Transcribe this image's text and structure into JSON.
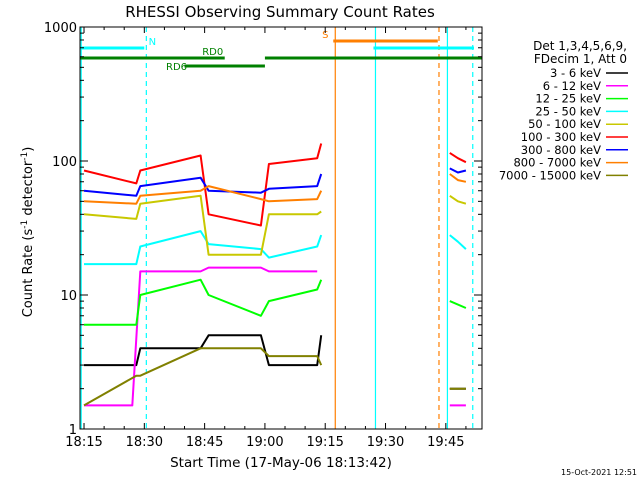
{
  "chart_data": {
    "type": "line",
    "title": "RHESSI Observing Summary Count Rates",
    "xlabel": "Start Time (17-May-06 18:13:42)",
    "ylabel_main": "Count Rate (s",
    "ylabel_sup1": "-1",
    "ylabel_mid": " detector",
    "ylabel_sup2": "-1",
    "ylabel_end": ")",
    "yscale": "log",
    "ylim": [
      1,
      1000
    ],
    "xlim_minutes": [
      1094,
      1194
    ],
    "xticks": [
      {
        "t": 1095,
        "label": "18:15"
      },
      {
        "t": 1110,
        "label": "18:30"
      },
      {
        "t": 1125,
        "label": "18:45"
      },
      {
        "t": 1140,
        "label": "19:00"
      },
      {
        "t": 1155,
        "label": "19:15"
      },
      {
        "t": 1170,
        "label": "19:30"
      },
      {
        "t": 1185,
        "label": "19:45"
      }
    ],
    "yticks": [
      {
        "v": 1,
        "label": "1"
      },
      {
        "v": 10,
        "label": "10"
      },
      {
        "v": 100,
        "label": "100"
      },
      {
        "v": 1000,
        "label": "1000"
      }
    ],
    "legend_header": [
      "Det 1,3,4,5,6,9,",
      "FDecim 1, Att 0"
    ],
    "series": [
      {
        "name": "3 - 6 keV",
        "color": "#000000",
        "segments": [
          {
            "x": [
              1095,
              1108,
              1109,
              1124,
              1126,
              1139,
              1141,
              1153,
              1154
            ],
            "y": [
              3,
              3,
              4,
              4,
              5,
              5,
              3,
              3,
              5
            ]
          },
          {
            "x": [
              1186,
              1188,
              1190
            ],
            "y": [
              2,
              2,
              2
            ]
          }
        ]
      },
      {
        "name": "6 - 12 keV",
        "color": "#ff00ff",
        "segments": [
          {
            "x": [
              1095,
              1107,
              1109,
              1124,
              1126,
              1139,
              1141,
              1153
            ],
            "y": [
              1.5,
              1.5,
              15,
              15,
              16,
              16,
              15,
              15
            ]
          },
          {
            "x": [
              1186,
              1188,
              1190
            ],
            "y": [
              1.5,
              1.5,
              1.5
            ]
          }
        ]
      },
      {
        "name": "12 - 25 keV",
        "color": "#00ff00",
        "segments": [
          {
            "x": [
              1095,
              1108,
              1109,
              1124,
              1126,
              1139,
              1141,
              1153,
              1154
            ],
            "y": [
              6,
              6,
              10,
              13,
              10,
              7,
              9,
              11,
              13
            ]
          },
          {
            "x": [
              1186,
              1190
            ],
            "y": [
              9,
              8
            ]
          }
        ]
      },
      {
        "name": "25 - 50 keV",
        "color": "#00ffff",
        "segments": [
          {
            "x": [
              1095,
              1108,
              1109,
              1124,
              1126,
              1139,
              1141,
              1153,
              1154
            ],
            "y": [
              17,
              17,
              23,
              30,
              24,
              22,
              19,
              23,
              28
            ]
          },
          {
            "x": [
              1186,
              1188,
              1190
            ],
            "y": [
              28,
              25,
              22
            ]
          }
        ]
      },
      {
        "name": "50 - 100 keV",
        "color": "#c8c800",
        "segments": [
          {
            "x": [
              1095,
              1108,
              1109,
              1124,
              1126,
              1139,
              1141,
              1153,
              1154
            ],
            "y": [
              40,
              37,
              48,
              55,
              20,
              20,
              40,
              40,
              42
            ]
          },
          {
            "x": [
              1186,
              1188,
              1190
            ],
            "y": [
              55,
              50,
              48
            ]
          }
        ]
      },
      {
        "name": "100 - 300 keV",
        "color": "#ff0000",
        "segments": [
          {
            "x": [
              1095,
              1108,
              1109,
              1124,
              1126,
              1139,
              1141,
              1153,
              1154
            ],
            "y": [
              85,
              68,
              85,
              110,
              40,
              33,
              95,
              105,
              135
            ]
          },
          {
            "x": [
              1186,
              1188,
              1190
            ],
            "y": [
              115,
              105,
              98
            ]
          }
        ]
      },
      {
        "name": "300 - 800 keV",
        "color": "#0000ff",
        "segments": [
          {
            "x": [
              1095,
              1108,
              1109,
              1124,
              1126,
              1139,
              1141,
              1153,
              1154
            ],
            "y": [
              60,
              55,
              65,
              75,
              60,
              58,
              62,
              65,
              80
            ]
          },
          {
            "x": [
              1186,
              1188,
              1190
            ],
            "y": [
              88,
              82,
              85
            ]
          }
        ]
      },
      {
        "name": "800 - 7000 keV",
        "color": "#ff7f00",
        "segments": [
          {
            "x": [
              1095,
              1108,
              1109,
              1124,
              1126,
              1139,
              1141,
              1153,
              1154
            ],
            "y": [
              50,
              48,
              55,
              60,
              65,
              52,
              50,
              52,
              60
            ]
          },
          {
            "x": [
              1186,
              1188,
              1190
            ],
            "y": [
              80,
              72,
              70
            ]
          }
        ]
      },
      {
        "name": "7000 - 15000 keV",
        "color": "#808000",
        "segments": [
          {
            "x": [
              1095,
              1108,
              1109,
              1124,
              1126,
              1139,
              1141,
              1153,
              1154
            ],
            "y": [
              1.5,
              2.5,
              2.5,
              4,
              4,
              4,
              3.5,
              3.5,
              3
            ]
          },
          {
            "x": [
              1186,
              1188,
              1190
            ],
            "y": [
              2,
              2,
              2
            ]
          }
        ]
      }
    ],
    "flags": [
      {
        "label": "N",
        "color": "#00ffff",
        "row": 1,
        "bars": [
          [
            1094,
            1110
          ],
          [
            1167,
            1192
          ]
        ]
      },
      {
        "label": "S",
        "color": "#ff7f00",
        "row": 0,
        "bars": [
          [
            1157,
            1183
          ]
        ]
      },
      {
        "label": "RD0",
        "color": "#008000",
        "row": 2,
        "bars": [
          [
            1094,
            1130
          ],
          [
            1140,
            1194
          ]
        ]
      },
      {
        "label": "RD6",
        "color": "#008000",
        "row": 3,
        "bars": [
          [
            1120,
            1140
          ]
        ]
      }
    ],
    "vlines": [
      {
        "t": 1094.3,
        "color": "#00ffff",
        "dashed": false
      },
      {
        "t": 1110.5,
        "color": "#00ffff",
        "dashed": true
      },
      {
        "t": 1157.5,
        "color": "#ff7f00",
        "dashed": false
      },
      {
        "t": 1167.5,
        "color": "#00ffff",
        "dashed": false
      },
      {
        "t": 1183.3,
        "color": "#ff7f00",
        "dashed": true
      },
      {
        "t": 1185.4,
        "color": "#00ffff",
        "dashed": false
      },
      {
        "t": 1191.7,
        "color": "#00ffff",
        "dashed": true
      }
    ]
  },
  "footer_stamp": "15-Oct-2021 12:51"
}
